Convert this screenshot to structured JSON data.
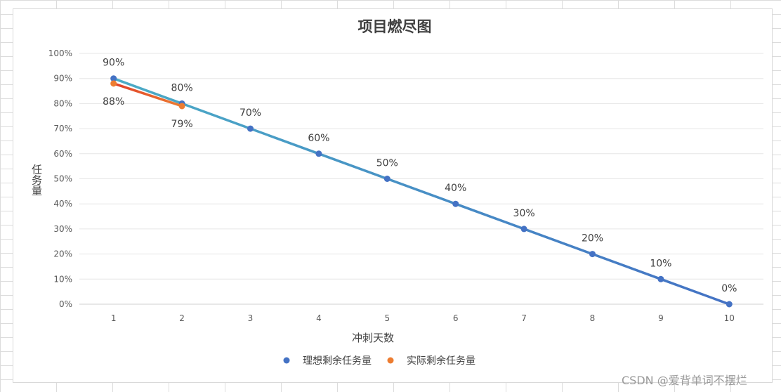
{
  "chart_data": {
    "type": "line",
    "title": "项目燃尽图",
    "xlabel": "冲刺天数",
    "ylabel": "任务量",
    "categories": [
      "1",
      "2",
      "3",
      "4",
      "5",
      "6",
      "7",
      "8",
      "9",
      "10"
    ],
    "y_ticks": [
      "0%",
      "10%",
      "20%",
      "30%",
      "40%",
      "50%",
      "60%",
      "70%",
      "80%",
      "90%",
      "100%"
    ],
    "ylim": [
      0,
      1
    ],
    "grid": true,
    "legend_position": "bottom",
    "series": [
      {
        "name": "理想剩余任务量",
        "x": [
          1,
          2,
          3,
          4,
          5,
          6,
          7,
          8,
          9,
          10
        ],
        "values": [
          0.9,
          0.8,
          0.7,
          0.6,
          0.5,
          0.4,
          0.3,
          0.2,
          0.1,
          0.0
        ],
        "labels": [
          "90%",
          "80%",
          "70%",
          "60%",
          "50%",
          "40%",
          "30%",
          "20%",
          "10%",
          "0%"
        ],
        "label_position": "above",
        "gradient": [
          "#4bacc6",
          "#4472c4"
        ],
        "marker_color": "#4472c4"
      },
      {
        "name": "实际剩余任务量",
        "x": [
          1,
          2
        ],
        "values": [
          0.88,
          0.79
        ],
        "labels": [
          "88%",
          "79%"
        ],
        "label_position": "below",
        "gradient": [
          "#e0402a",
          "#ed7d31"
        ],
        "marker_color": "#ed7d31"
      }
    ]
  },
  "watermark": "CSDN @爱背单词不摆烂"
}
